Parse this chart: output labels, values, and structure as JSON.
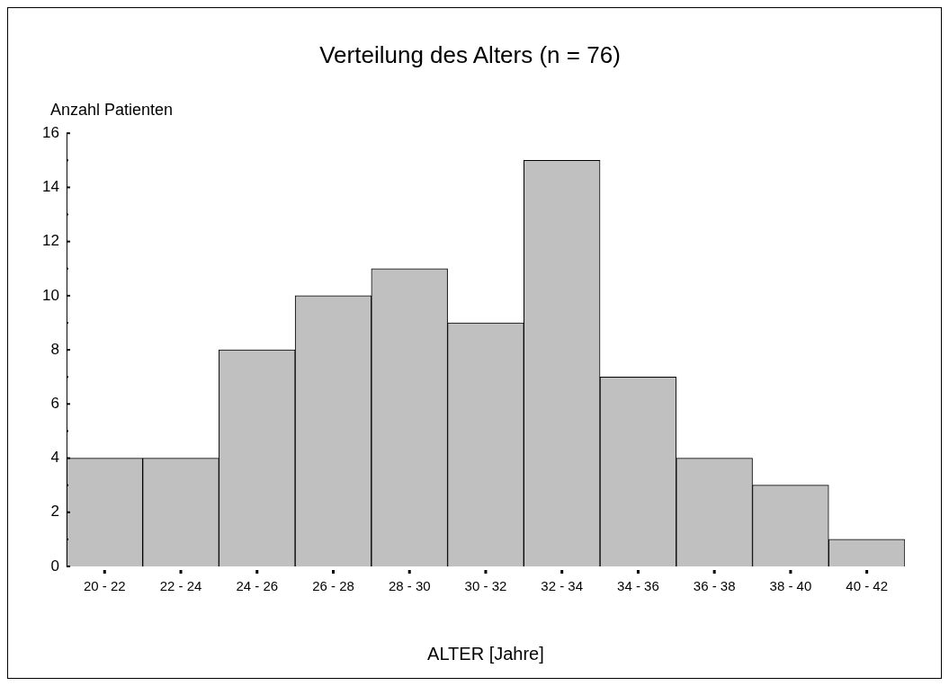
{
  "chart_data": {
    "type": "bar",
    "title": "Verteilung des Alters (n = 76)",
    "xlabel": "ALTER [Jahre]",
    "ylabel": "Anzahl Patienten",
    "categories": [
      "20 - 22",
      "22 - 24",
      "24 - 26",
      "26 - 28",
      "28 - 30",
      "30 - 32",
      "32 - 34",
      "34 - 36",
      "36 - 38",
      "38 - 40",
      "40 - 42"
    ],
    "values": [
      4,
      4,
      8,
      10,
      11,
      9,
      15,
      7,
      4,
      3,
      1
    ],
    "color": "#c0c0c0",
    "ylim": [
      0,
      16
    ],
    "yticks": [
      0,
      {
        "value": 1,
        "label": null
      },
      2,
      {
        "value": 3,
        "label": null
      },
      4,
      {
        "value": 5,
        "label": null
      },
      6,
      {
        "value": 7,
        "label": null
      },
      8,
      {
        "value": 9,
        "label": null
      },
      10,
      {
        "value": 11,
        "label": null
      },
      12,
      {
        "value": 13,
        "label": null
      },
      14,
      {
        "value": 15,
        "label": null
      },
      16
    ],
    "grid": false,
    "legend": false
  }
}
